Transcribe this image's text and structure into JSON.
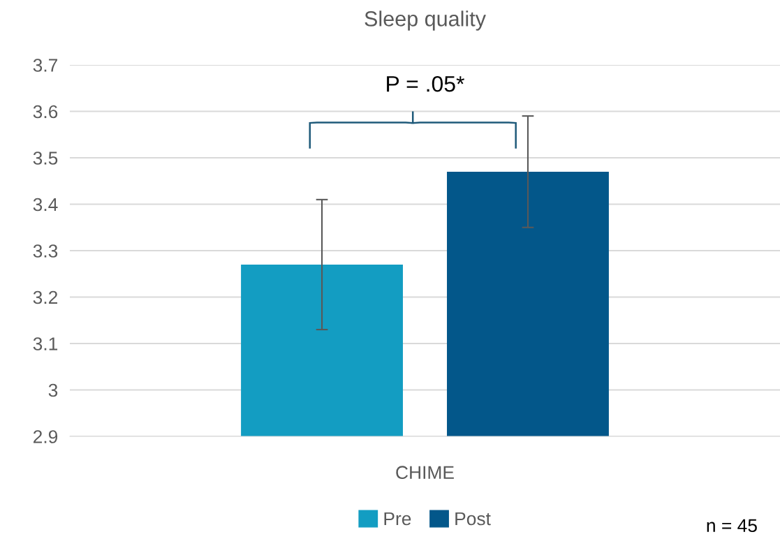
{
  "chart_data": {
    "type": "bar",
    "title": "Sleep quality",
    "categories": [
      "CHIME"
    ],
    "series": [
      {
        "name": "Pre",
        "color": "#139dc2",
        "values": [
          3.27
        ],
        "errors": [
          [
            3.13,
            3.41
          ]
        ]
      },
      {
        "name": "Post",
        "color": "#03578a",
        "values": [
          3.47
        ],
        "errors": [
          [
            3.35,
            3.59
          ]
        ]
      }
    ],
    "ylim": [
      2.9,
      3.7
    ],
    "yticks": [
      2.9,
      3,
      3.1,
      3.2,
      3.3,
      3.4,
      3.5,
      3.6,
      3.7
    ],
    "grid": "y",
    "legend": "bottom",
    "annotations": [
      "P = .05*",
      "n = 45"
    ]
  }
}
